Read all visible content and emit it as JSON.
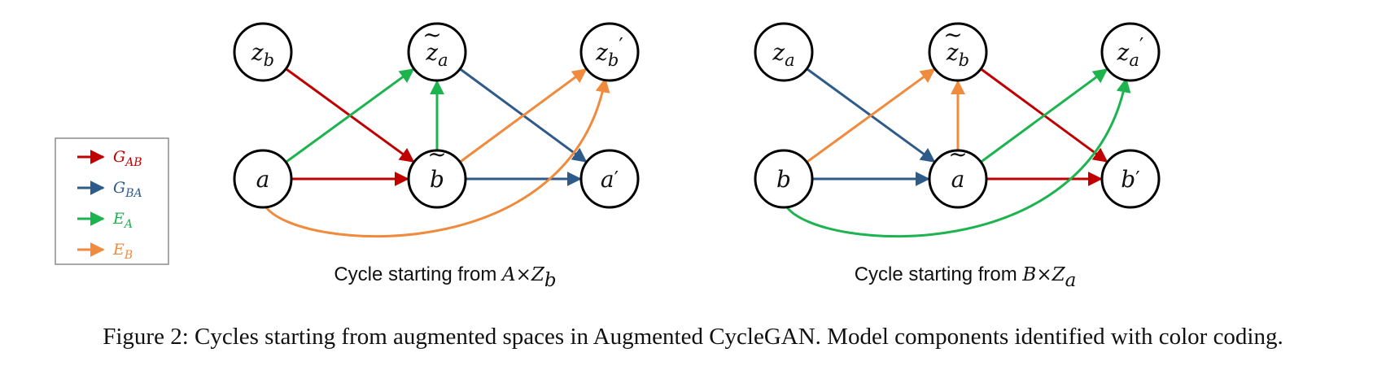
{
  "colors": {
    "G_AB": "#c00000",
    "G_BA": "#2e5b8a",
    "E_A": "#1db34f",
    "E_B": "#f08a3c"
  },
  "legend": [
    {
      "key": "G_AB",
      "base": "G",
      "sub": "AB"
    },
    {
      "key": "G_BA",
      "base": "G",
      "sub": "BA"
    },
    {
      "key": "E_A",
      "base": "E",
      "sub": "A"
    },
    {
      "key": "E_B",
      "base": "E",
      "sub": "B"
    }
  ],
  "diagrams": [
    {
      "id": "left",
      "subcaption": {
        "text": "Cycle starting from ",
        "math_base": "A×Z",
        "math_sub": "b"
      },
      "nodes": [
        {
          "id": "zb",
          "base": "z",
          "sub": "b",
          "tilde": false,
          "prime": false
        },
        {
          "id": "za_t",
          "base": "z",
          "sub": "a",
          "tilde": true,
          "prime": false
        },
        {
          "id": "zb_p",
          "base": "z",
          "sub": "b",
          "tilde": false,
          "prime": true
        },
        {
          "id": "a",
          "base": "a",
          "sub": "",
          "tilde": false,
          "prime": false
        },
        {
          "id": "b_t",
          "base": "b",
          "sub": "",
          "tilde": true,
          "prime": false
        },
        {
          "id": "a_p",
          "base": "a",
          "sub": "",
          "tilde": false,
          "prime": true
        }
      ],
      "edges": [
        {
          "from": "zb",
          "to": "b_t",
          "component": "G_AB"
        },
        {
          "from": "a",
          "to": "b_t",
          "component": "G_AB"
        },
        {
          "from": "a",
          "to": "za_t",
          "component": "E_A"
        },
        {
          "from": "b_t",
          "to": "za_t",
          "component": "E_A"
        },
        {
          "from": "za_t",
          "to": "a_p",
          "component": "G_BA"
        },
        {
          "from": "b_t",
          "to": "a_p",
          "component": "G_BA"
        },
        {
          "from": "b_t",
          "to": "zb_p",
          "component": "E_B"
        },
        {
          "from": "a",
          "to": "zb_p",
          "component": "E_B",
          "curved": true
        }
      ]
    },
    {
      "id": "right",
      "subcaption": {
        "text": "Cycle starting from ",
        "math_base": "B×Z",
        "math_sub": "a"
      },
      "nodes": [
        {
          "id": "za",
          "base": "z",
          "sub": "a",
          "tilde": false,
          "prime": false
        },
        {
          "id": "zb_t",
          "base": "z",
          "sub": "b",
          "tilde": true,
          "prime": false
        },
        {
          "id": "za_p",
          "base": "z",
          "sub": "a",
          "tilde": false,
          "prime": true
        },
        {
          "id": "b",
          "base": "b",
          "sub": "",
          "tilde": false,
          "prime": false
        },
        {
          "id": "a_t",
          "base": "a",
          "sub": "",
          "tilde": true,
          "prime": false
        },
        {
          "id": "b_p",
          "base": "b",
          "sub": "",
          "tilde": false,
          "prime": true
        }
      ],
      "edges": [
        {
          "from": "za",
          "to": "a_t",
          "component": "G_BA"
        },
        {
          "from": "b",
          "to": "a_t",
          "component": "G_BA"
        },
        {
          "from": "b",
          "to": "zb_t",
          "component": "E_B"
        },
        {
          "from": "a_t",
          "to": "zb_t",
          "component": "E_B"
        },
        {
          "from": "zb_t",
          "to": "b_p",
          "component": "G_AB"
        },
        {
          "from": "a_t",
          "to": "b_p",
          "component": "G_AB"
        },
        {
          "from": "a_t",
          "to": "za_p",
          "component": "E_A"
        },
        {
          "from": "b",
          "to": "za_p",
          "component": "E_A",
          "curved": true
        }
      ]
    }
  ],
  "caption": "Figure 2: Cycles starting from augmented spaces in Augmented CycleGAN. Model components identified with color coding."
}
